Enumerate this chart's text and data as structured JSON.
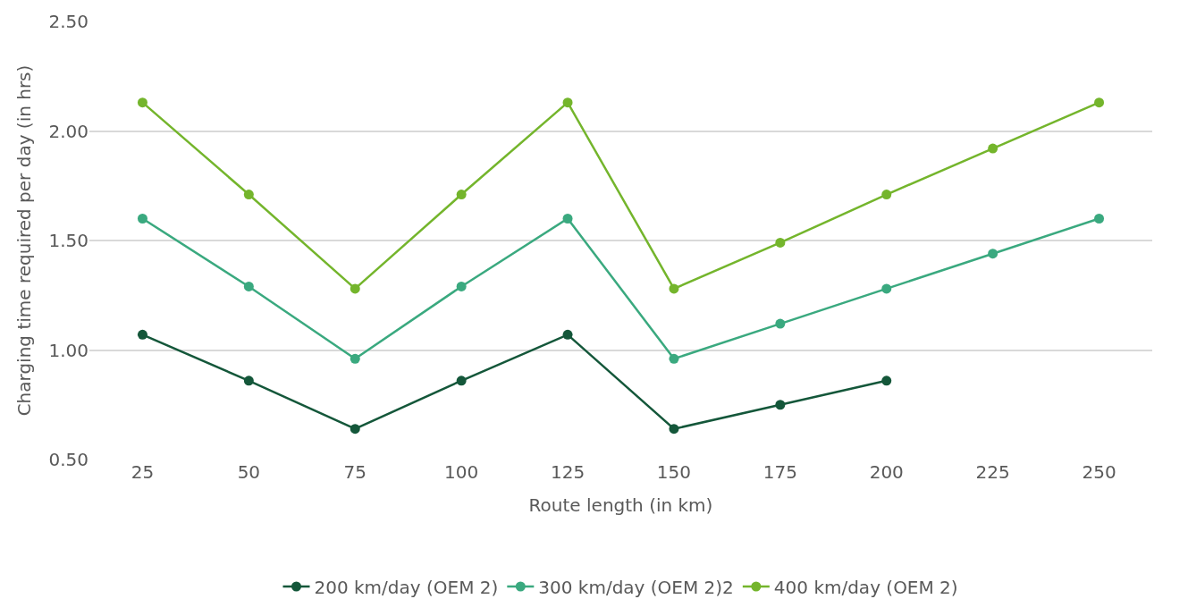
{
  "chart_data": {
    "type": "line",
    "xlabel": "Route length (in km)",
    "ylabel": "Charging time required per day (in hrs)",
    "categories": [
      "25",
      "50",
      "75",
      "100",
      "125",
      "150",
      "175",
      "200",
      "225",
      "250"
    ],
    "series": [
      {
        "name": "200 km/day (OEM 2)",
        "color": "#14573a",
        "values": [
          1.07,
          0.86,
          0.64,
          0.86,
          1.07,
          0.64,
          0.75,
          0.86,
          null,
          null
        ]
      },
      {
        "name": "300 km/day (OEM 2)2",
        "color": "#3aa97f",
        "values": [
          1.6,
          1.29,
          0.96,
          1.29,
          1.6,
          0.96,
          1.12,
          1.28,
          1.44,
          1.6
        ]
      },
      {
        "name": "400 km/day (OEM 2)",
        "color": "#74b52c",
        "values": [
          2.13,
          1.71,
          1.28,
          1.71,
          2.13,
          1.28,
          1.49,
          1.71,
          1.92,
          2.13
        ]
      }
    ],
    "ylim": [
      0.5,
      2.5
    ],
    "yticks": [
      {
        "value": 0.5,
        "label": "0.50"
      },
      {
        "value": 1,
        "label": "1.00"
      },
      {
        "value": 1.5,
        "label": "1.50"
      },
      {
        "value": 2,
        "label": "2.00"
      },
      {
        "value": 2.5,
        "label": "2.50"
      }
    ],
    "grid": "y",
    "legend": "bottom",
    "marker": "circle",
    "line_style": "solid"
  }
}
